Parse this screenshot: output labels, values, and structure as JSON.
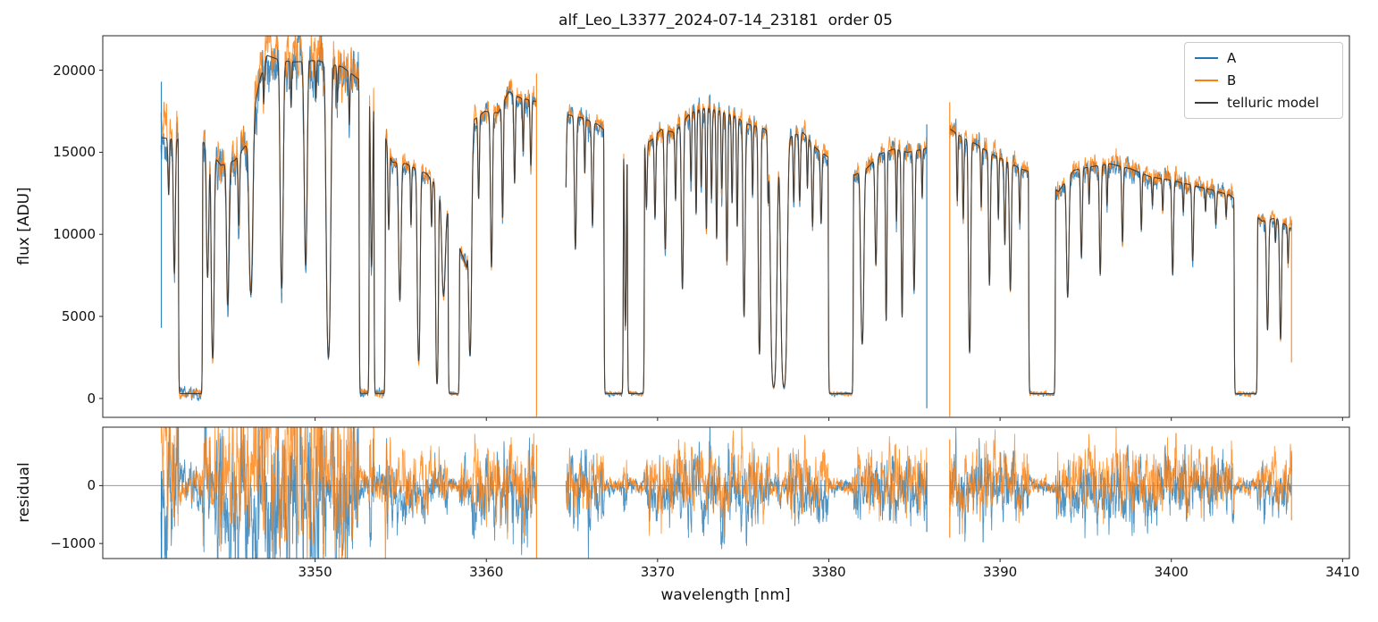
{
  "figure": {
    "title": "alf_Leo_L3377_2024-07-14_23181  order 05",
    "xlabel": "wavelength [nm]",
    "ylabel_top": "flux [ADU]",
    "ylabel_bottom": "residual",
    "background": "#ffffff"
  },
  "legend": [
    {
      "label": "A",
      "color": "#1f77b4"
    },
    {
      "label": "B",
      "color": "#ff7f0e"
    },
    {
      "label": "telluric model",
      "color": "#3a3a3a"
    }
  ],
  "chart_data": {
    "type": "line",
    "title": "alf_Leo_L3377_2024-07-14_23181  order 05",
    "xlabel": "wavelength [nm]",
    "ylabel": "flux [ADU]",
    "ylabel2": "residual",
    "legend_position": "upper right",
    "grid": false,
    "xlim": [
      3337.6,
      3410.4
    ],
    "ylim_flux": [
      -1150,
      22100
    ],
    "ylim_residual": [
      -1260,
      1010
    ],
    "xticks": [
      3350,
      3360,
      3370,
      3380,
      3390,
      3400,
      3410
    ],
    "yticks_flux": [
      0,
      5000,
      10000,
      15000,
      20000
    ],
    "yticks_residual": [
      -1000,
      0
    ],
    "series": [
      {
        "name": "A",
        "color": "#1f77b4"
      },
      {
        "name": "B",
        "color": "#ff7f0e"
      },
      {
        "name": "telluric model",
        "color": "#3a3a3a"
      }
    ],
    "zero_line_color": "#9a9a9a",
    "segments": [
      [
        3341.0,
        3362.93
      ],
      [
        3364.65,
        3385.72
      ],
      [
        3387.06,
        3407.05
      ]
    ],
    "model_floor": 260,
    "band_edge": 0.12,
    "continuum": [
      [
        3340.8,
        15900
      ],
      [
        3342.0,
        15800
      ],
      [
        3343.5,
        15600
      ],
      [
        3344.5,
        14200
      ],
      [
        3345.3,
        14500
      ],
      [
        3346.0,
        15500
      ],
      [
        3346.8,
        19500
      ],
      [
        3347.2,
        20900
      ],
      [
        3348.0,
        20600
      ],
      [
        3348.8,
        20500
      ],
      [
        3350.1,
        20600
      ],
      [
        3351.6,
        20200
      ],
      [
        3352.6,
        19400
      ],
      [
        3353.5,
        18200
      ],
      [
        3354.5,
        14400
      ],
      [
        3355.3,
        14300
      ],
      [
        3356.5,
        13700
      ],
      [
        3357.4,
        12600
      ],
      [
        3358.5,
        9000
      ],
      [
        3358.85,
        8000
      ],
      [
        3359.3,
        17000
      ],
      [
        3359.9,
        17500
      ],
      [
        3360.7,
        17400
      ],
      [
        3361.3,
        18700
      ],
      [
        3362.0,
        18300
      ],
      [
        3362.9,
        18100
      ],
      [
        3364.7,
        17300
      ],
      [
        3365.6,
        17100
      ],
      [
        3366.5,
        16700
      ],
      [
        3367.5,
        15800
      ],
      [
        3368.5,
        15300
      ],
      [
        3369.6,
        15700
      ],
      [
        3370.2,
        16400
      ],
      [
        3371.0,
        16200
      ],
      [
        3371.9,
        17400
      ],
      [
        3372.8,
        17700
      ],
      [
        3373.7,
        17500
      ],
      [
        3374.5,
        17200
      ],
      [
        3375.3,
        16700
      ],
      [
        3376.1,
        16500
      ],
      [
        3377.0,
        16000
      ],
      [
        3377.8,
        16000
      ],
      [
        3378.5,
        16200
      ],
      [
        3379.3,
        15200
      ],
      [
        3380.5,
        14300
      ],
      [
        3381.5,
        13600
      ],
      [
        3382.3,
        14100
      ],
      [
        3383.0,
        14900
      ],
      [
        3383.8,
        15200
      ],
      [
        3384.6,
        15000
      ],
      [
        3385.6,
        15200
      ],
      [
        3387.1,
        16400
      ],
      [
        3387.8,
        15900
      ],
      [
        3388.6,
        15500
      ],
      [
        3389.5,
        14900
      ],
      [
        3390.3,
        14500
      ],
      [
        3391.2,
        14000
      ],
      [
        3392.3,
        13600
      ],
      [
        3393.4,
        12600
      ],
      [
        3394.3,
        13900
      ],
      [
        3395.2,
        14100
      ],
      [
        3396.4,
        14300
      ],
      [
        3397.6,
        14000
      ],
      [
        3398.8,
        13500
      ],
      [
        3400.0,
        13300
      ],
      [
        3401.2,
        13000
      ],
      [
        3402.4,
        12700
      ],
      [
        3403.4,
        12400
      ],
      [
        3404.4,
        11600
      ],
      [
        3405.3,
        10800
      ],
      [
        3406.1,
        11000
      ],
      [
        3407.2,
        10200
      ]
    ],
    "bands": [
      [
        3342.0,
        3343.45,
        6
      ],
      [
        3352.55,
        3353.18,
        6
      ],
      [
        3353.42,
        3354.12,
        6
      ],
      [
        3357.75,
        3358.45,
        6
      ],
      [
        3366.85,
        3368.02,
        6
      ],
      [
        3368.22,
        3369.25,
        6
      ],
      [
        3379.95,
        3381.45,
        6
      ],
      [
        3391.65,
        3393.25,
        6
      ],
      [
        3403.65,
        3405.05,
        6
      ]
    ],
    "lines": [
      [
        3341.45,
        0.25,
        0.04
      ],
      [
        3341.78,
        0.75,
        0.05
      ],
      [
        3343.72,
        0.75,
        0.06
      ],
      [
        3344.02,
        1.9,
        0.06
      ],
      [
        3344.9,
        0.95,
        0.06
      ],
      [
        3345.55,
        0.35,
        0.04
      ],
      [
        3346.25,
        1.0,
        0.09
      ],
      [
        3347.0,
        0.12,
        0.03
      ],
      [
        3348.05,
        1.15,
        0.07
      ],
      [
        3348.6,
        0.15,
        0.03
      ],
      [
        3349.45,
        0.95,
        0.07
      ],
      [
        3350.05,
        0.12,
        0.03
      ],
      [
        3350.78,
        2.2,
        0.09
      ],
      [
        3351.3,
        0.12,
        0.03
      ],
      [
        3352.0,
        0.18,
        0.03
      ],
      [
        3353.3,
        0.85,
        0.05
      ],
      [
        3354.3,
        0.4,
        0.04
      ],
      [
        3354.95,
        0.9,
        0.06
      ],
      [
        3355.6,
        0.3,
        0.03
      ],
      [
        3356.05,
        1.9,
        0.06
      ],
      [
        3356.8,
        0.25,
        0.03
      ],
      [
        3357.12,
        3.0,
        0.05
      ],
      [
        3357.5,
        0.7,
        0.09
      ],
      [
        3359.05,
        1.6,
        0.06
      ],
      [
        3359.55,
        0.35,
        0.04
      ],
      [
        3360.3,
        0.8,
        0.05
      ],
      [
        3360.95,
        0.5,
        0.04
      ],
      [
        3361.65,
        0.35,
        0.04
      ],
      [
        3362.15,
        0.2,
        0.03
      ],
      [
        3362.6,
        0.25,
        0.04
      ],
      [
        3364.6,
        0.5,
        0.05
      ],
      [
        3365.2,
        0.65,
        0.05
      ],
      [
        3365.75,
        0.22,
        0.03
      ],
      [
        3366.2,
        0.48,
        0.045
      ],
      [
        3368.12,
        1.3,
        0.04
      ],
      [
        3369.35,
        0.3,
        0.04
      ],
      [
        3369.85,
        0.38,
        0.04
      ],
      [
        3370.45,
        0.6,
        0.05
      ],
      [
        3371.05,
        0.3,
        0.035
      ],
      [
        3371.45,
        0.95,
        0.05
      ],
      [
        3371.95,
        0.28,
        0.035
      ],
      [
        3372.25,
        0.45,
        0.035
      ],
      [
        3372.55,
        0.32,
        0.035
      ],
      [
        3372.85,
        0.55,
        0.035
      ],
      [
        3373.15,
        0.38,
        0.035
      ],
      [
        3373.45,
        0.6,
        0.035
      ],
      [
        3373.75,
        0.32,
        0.035
      ],
      [
        3374.05,
        0.75,
        0.04
      ],
      [
        3374.35,
        0.38,
        0.035
      ],
      [
        3374.65,
        0.5,
        0.035
      ],
      [
        3375.05,
        1.25,
        0.05
      ],
      [
        3375.55,
        0.3,
        0.03
      ],
      [
        3375.95,
        1.9,
        0.05
      ],
      [
        3376.45,
        0.28,
        0.03
      ],
      [
        3376.78,
        3.6,
        0.11
      ],
      [
        3377.38,
        3.6,
        0.11
      ],
      [
        3377.95,
        0.3,
        0.035
      ],
      [
        3378.3,
        0.3,
        0.04
      ],
      [
        3378.75,
        0.22,
        0.03
      ],
      [
        3379.05,
        0.4,
        0.04
      ],
      [
        3379.55,
        0.35,
        0.04
      ],
      [
        3381.95,
        1.5,
        0.07
      ],
      [
        3382.75,
        0.6,
        0.05
      ],
      [
        3383.35,
        1.2,
        0.035
      ],
      [
        3383.95,
        0.35,
        0.03
      ],
      [
        3384.28,
        1.15,
        0.04
      ],
      [
        3384.98,
        0.85,
        0.045
      ],
      [
        3385.45,
        0.22,
        0.03
      ],
      [
        3387.5,
        0.3,
        0.03
      ],
      [
        3387.85,
        0.38,
        0.035
      ],
      [
        3388.22,
        1.8,
        0.05
      ],
      [
        3388.9,
        0.28,
        0.03
      ],
      [
        3389.38,
        0.8,
        0.045
      ],
      [
        3389.9,
        0.3,
        0.03
      ],
      [
        3390.28,
        0.45,
        0.04
      ],
      [
        3390.6,
        0.8,
        0.05
      ],
      [
        3391.15,
        0.28,
        0.03
      ],
      [
        3393.95,
        0.8,
        0.06
      ],
      [
        3394.75,
        0.5,
        0.045
      ],
      [
        3395.2,
        0.18,
        0.03
      ],
      [
        3395.85,
        0.65,
        0.045
      ],
      [
        3396.25,
        0.2,
        0.03
      ],
      [
        3397.15,
        0.4,
        0.04
      ],
      [
        3398.25,
        0.3,
        0.035
      ],
      [
        3398.9,
        0.14,
        0.03
      ],
      [
        3399.5,
        0.16,
        0.03
      ],
      [
        3400.08,
        0.58,
        0.045
      ],
      [
        3400.7,
        0.15,
        0.03
      ],
      [
        3401.25,
        0.45,
        0.045
      ],
      [
        3402.0,
        0.12,
        0.03
      ],
      [
        3402.6,
        0.18,
        0.04
      ],
      [
        3403.2,
        0.12,
        0.03
      ],
      [
        3405.62,
        1.0,
        0.05
      ],
      [
        3406.08,
        0.15,
        0.03
      ],
      [
        3406.38,
        1.15,
        0.045
      ],
      [
        3406.82,
        0.25,
        0.03
      ]
    ],
    "noise": {
      "seed": 77,
      "frac": 0.016,
      "floor": 60,
      "ar": 0.72,
      "boost_range": [
        3340.5,
        3354.3
      ],
      "boost": 2.2,
      "offset_frac": 0.007,
      "offset_boost": 0.018
    },
    "spikes_flux": [
      [
        3341.02,
        4300,
        19300,
        "A"
      ],
      [
        3362.93,
        -1100,
        19800,
        "B"
      ],
      [
        3385.72,
        -600,
        16700,
        "A"
      ],
      [
        3387.06,
        -1100,
        18050,
        "B"
      ],
      [
        3407.02,
        2200,
        10600,
        "B"
      ]
    ],
    "spikes_residual": [
      [
        3341.02,
        -1250,
        250,
        "A"
      ],
      [
        3362.93,
        -1250,
        700,
        "B"
      ],
      [
        3385.72,
        -800,
        400,
        "A"
      ],
      [
        3387.06,
        -900,
        800,
        "B"
      ],
      [
        3407.02,
        -600,
        600,
        "B"
      ]
    ]
  }
}
